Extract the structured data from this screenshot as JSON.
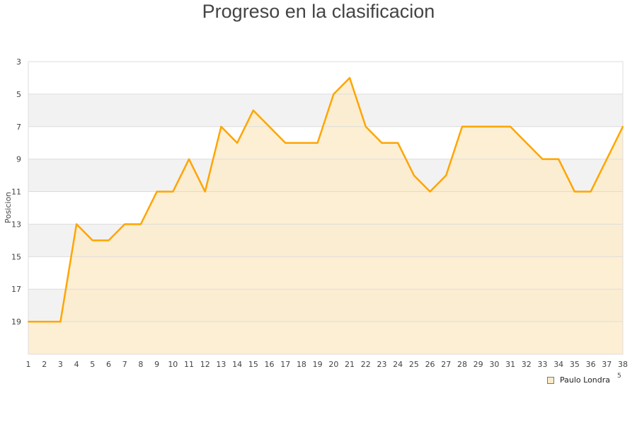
{
  "chart_data": {
    "type": "area",
    "title": "Progreso en la clasificacion",
    "xlabel": "",
    "ylabel": "Posicion",
    "x": [
      1,
      2,
      3,
      4,
      5,
      6,
      7,
      8,
      9,
      10,
      11,
      12,
      13,
      14,
      15,
      16,
      17,
      18,
      19,
      20,
      21,
      22,
      23,
      24,
      25,
      26,
      27,
      28,
      29,
      30,
      31,
      32,
      33,
      34,
      35,
      36,
      37,
      38
    ],
    "y_ticks": [
      3,
      5,
      7,
      9,
      11,
      13,
      15,
      17,
      19
    ],
    "ylim": [
      3,
      21
    ],
    "y_inverted": true,
    "grid": true,
    "legend_position": "bottom-right",
    "series": [
      {
        "name": "Paulo Londra",
        "values": [
          19,
          19,
          19,
          13,
          14,
          14,
          13,
          13,
          11,
          11,
          9,
          11,
          7,
          8,
          6,
          7,
          8,
          8,
          8,
          5,
          4,
          7,
          8,
          8,
          10,
          11,
          10,
          7,
          7,
          7,
          7,
          8,
          9,
          9,
          11,
          11,
          9,
          7
        ],
        "line_color": "#ffa500",
        "fill_color": "#fdebc8"
      }
    ],
    "x_label_fragment": "5"
  }
}
